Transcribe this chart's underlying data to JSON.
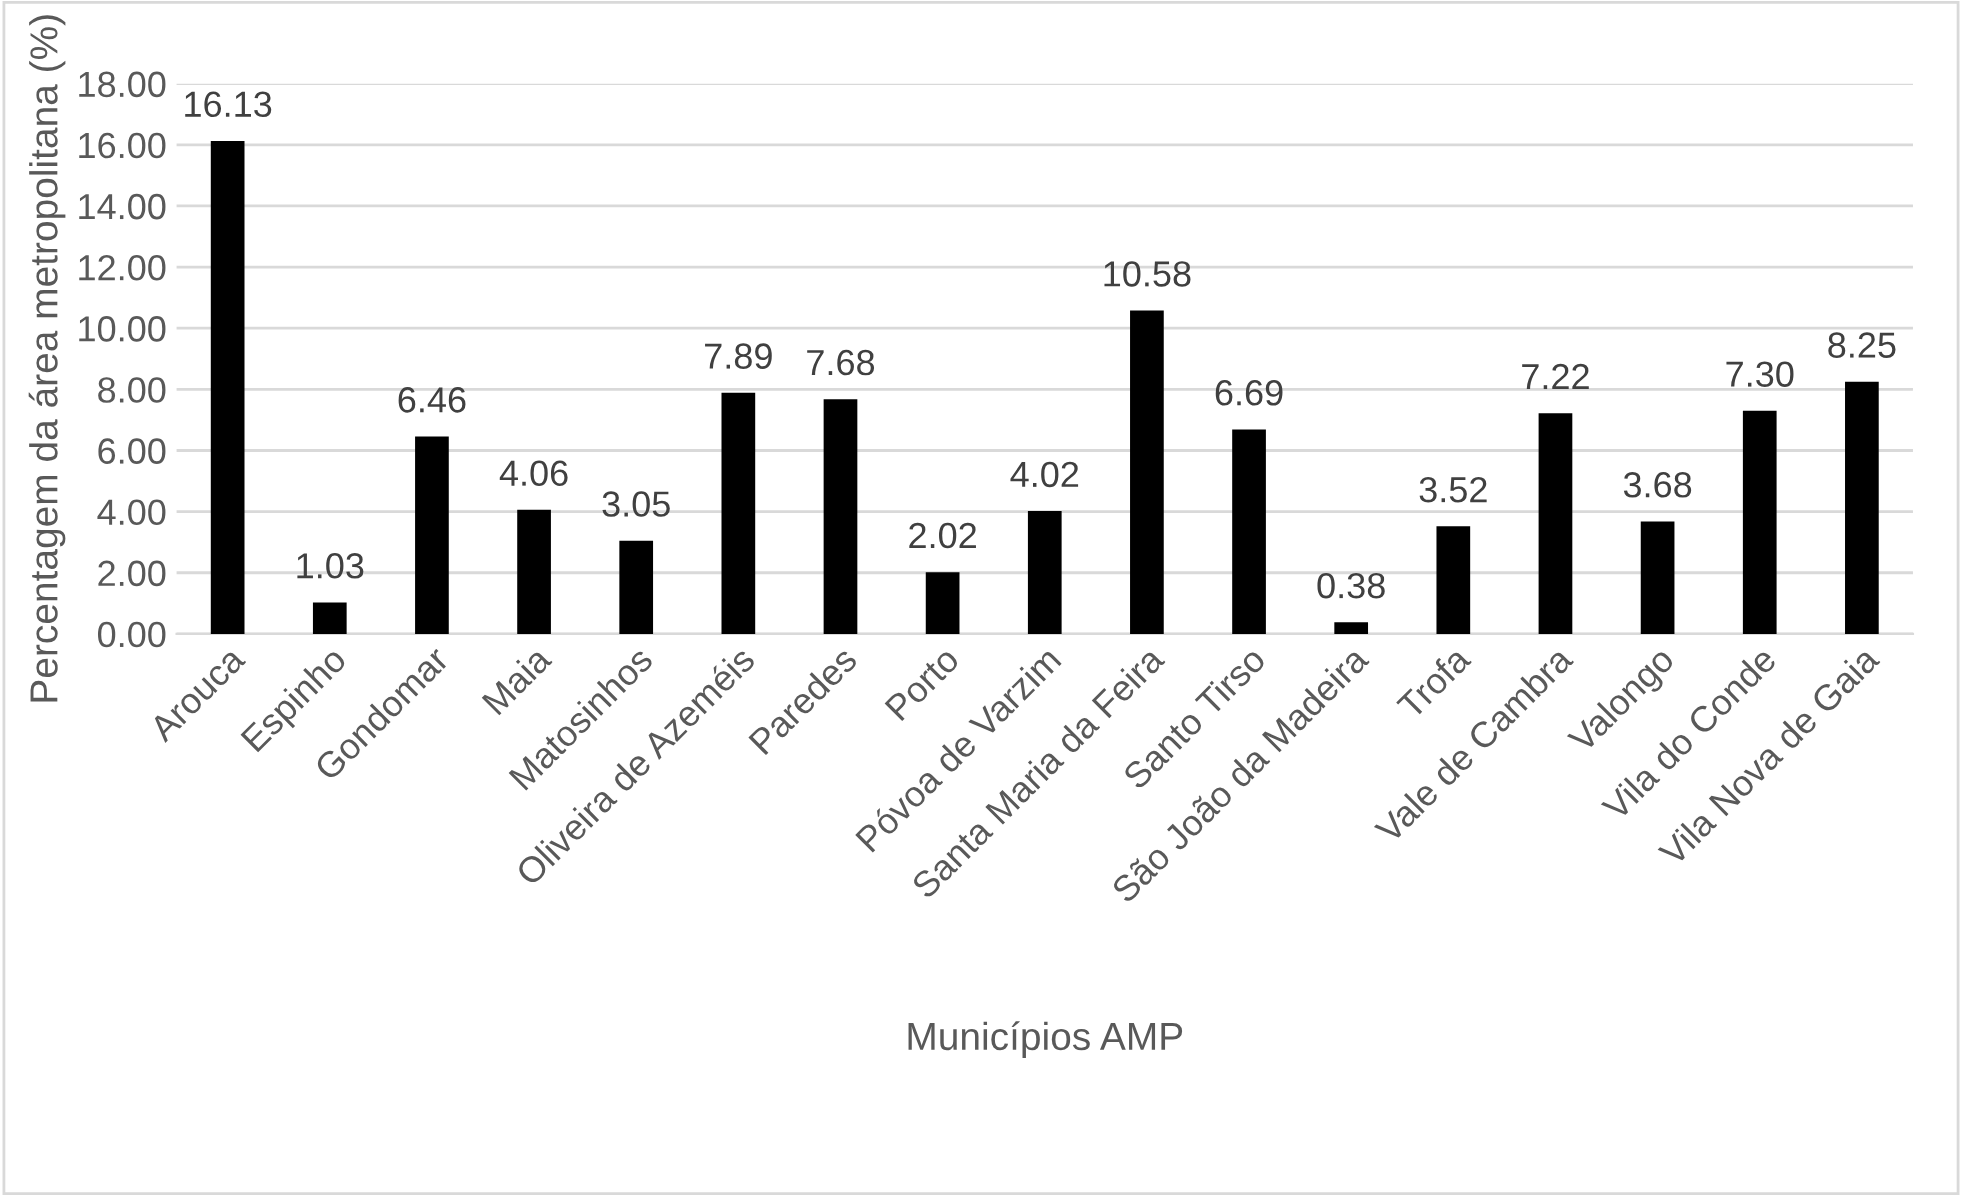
{
  "chart_data": {
    "type": "bar",
    "xlabel": "Municípios AMP",
    "ylabel": "Percentagem da área metropolitana (%)",
    "categories": [
      "Arouca",
      "Espinho",
      "Gondomar",
      "Maia",
      "Matosinhos",
      "Oliveira de Azeméis",
      "Paredes",
      "Porto",
      "Póvoa de Varzim",
      "Santa Maria da Feira",
      "Santo Tirso",
      "São João da Madeira",
      "Trofa",
      "Vale de Cambra",
      "Valongo",
      "Vila do Conde",
      "Vila Nova de Gaia"
    ],
    "values": [
      16.13,
      1.03,
      6.46,
      4.06,
      3.05,
      7.89,
      7.68,
      2.02,
      4.02,
      10.58,
      6.69,
      0.38,
      3.52,
      7.22,
      3.68,
      7.3,
      8.25
    ],
    "value_labels": [
      "16.13",
      "1.03",
      "6.46",
      "4.06",
      "3.05",
      "7.89",
      "7.68",
      "2.02",
      "4.02",
      "10.58",
      "6.69",
      "0.38",
      "3.52",
      "7.22",
      "3.68",
      "7.30",
      "8.25"
    ],
    "color": "#000000",
    "ylim": [
      0,
      18
    ],
    "yticks": [
      {
        "value": 0,
        "label": "0.00"
      },
      {
        "value": 2,
        "label": "2.00"
      },
      {
        "value": 4,
        "label": "4.00"
      },
      {
        "value": 6,
        "label": "6.00"
      },
      {
        "value": 8,
        "label": "8.00"
      },
      {
        "value": 10,
        "label": "10.00"
      },
      {
        "value": 12,
        "label": "12.00"
      },
      {
        "value": 14,
        "label": "14.00"
      },
      {
        "value": 16,
        "label": "16.00"
      },
      {
        "value": 18,
        "label": "18.00"
      }
    ],
    "grid": "y",
    "legend": false
  }
}
